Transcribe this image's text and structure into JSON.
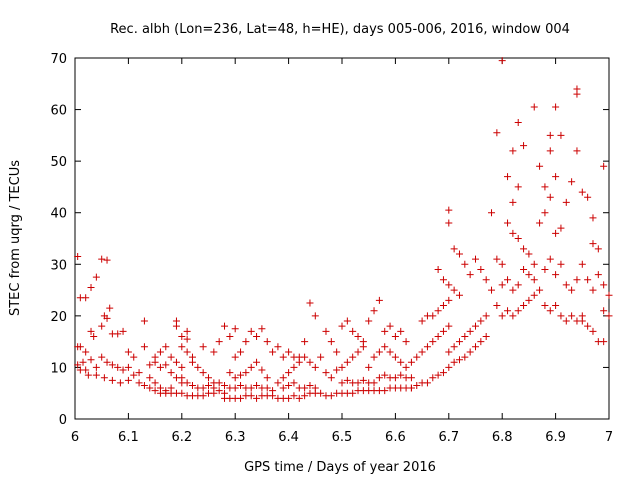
{
  "chart_data": {
    "type": "scatter",
    "title": "Rec. albh (Lon=236, Lat=48, h=HE), days 005-006, 2016, window 004",
    "xlabel": "GPS time / Days of year 2016",
    "ylabel": "STEC from uqrg / TECUs",
    "xlim": [
      6,
      7
    ],
    "ylim": [
      0,
      70
    ],
    "x_ticks": [
      6,
      6.1,
      6.2,
      6.3,
      6.4,
      6.5,
      6.6,
      6.7,
      6.8,
      6.9,
      7
    ],
    "x_tick_labels": [
      "6",
      "6.1",
      "6.2",
      "6.3",
      "6.4",
      "6.5",
      "6.6",
      "6.7",
      "6.8",
      "6.9",
      "7"
    ],
    "y_ticks": [
      0,
      10,
      20,
      30,
      40,
      50,
      60,
      70
    ],
    "y_tick_labels": [
      "0",
      "10",
      "20",
      "30",
      "40",
      "50",
      "60",
      "70"
    ],
    "grid": false,
    "legend": "none",
    "marker": "plus",
    "color": "#cc0000",
    "points": [
      [
        6.005,
        31.5
      ],
      [
        6.01,
        23.5
      ],
      [
        6.02,
        23.5
      ],
      [
        6.03,
        25.5
      ],
      [
        6.04,
        27.5
      ],
      [
        6.05,
        31
      ],
      [
        6.06,
        30.8
      ],
      [
        6.065,
        21.5
      ],
      [
        6.005,
        14
      ],
      [
        6.01,
        14
      ],
      [
        6.02,
        13
      ],
      [
        6.03,
        17
      ],
      [
        6.035,
        16
      ],
      [
        6.05,
        18
      ],
      [
        6.055,
        20
      ],
      [
        6.06,
        19.5
      ],
      [
        6.07,
        16.5
      ],
      [
        6.08,
        16.5
      ],
      [
        6.09,
        17
      ],
      [
        6.005,
        10.5
      ],
      [
        6.015,
        11
      ],
      [
        6.02,
        9.5
      ],
      [
        6.03,
        11.5
      ],
      [
        6.04,
        10
      ],
      [
        6.05,
        12
      ],
      [
        6.06,
        11
      ],
      [
        6.07,
        10.5
      ],
      [
        6.08,
        10
      ],
      [
        6.09,
        9.5
      ],
      [
        6.01,
        9.5
      ],
      [
        6.025,
        8.5
      ],
      [
        6.04,
        8.5
      ],
      [
        6.055,
        8
      ],
      [
        6.07,
        7.5
      ],
      [
        6.085,
        7
      ],
      [
        6.1,
        7.5
      ],
      [
        6.1,
        13
      ],
      [
        6.1,
        10
      ],
      [
        6.11,
        12
      ],
      [
        6.12,
        9
      ],
      [
        6.13,
        19
      ],
      [
        6.14,
        8
      ],
      [
        6.15,
        7
      ],
      [
        6.16,
        6
      ],
      [
        6.17,
        5.5
      ],
      [
        6.18,
        5
      ],
      [
        6.11,
        8.5
      ],
      [
        6.12,
        7
      ],
      [
        6.13,
        6.5
      ],
      [
        6.14,
        6
      ],
      [
        6.15,
        5.5
      ],
      [
        6.16,
        5
      ],
      [
        6.17,
        5
      ],
      [
        6.13,
        14
      ],
      [
        6.14,
        10.5
      ],
      [
        6.15,
        11
      ],
      [
        6.16,
        10
      ],
      [
        6.17,
        10.5
      ],
      [
        6.18,
        9
      ],
      [
        6.19,
        8
      ],
      [
        6.2,
        7
      ],
      [
        6.15,
        12
      ],
      [
        6.16,
        13
      ],
      [
        6.17,
        14
      ],
      [
        6.18,
        12
      ],
      [
        6.19,
        11
      ],
      [
        6.2,
        10
      ],
      [
        6.19,
        19
      ],
      [
        6.19,
        18
      ],
      [
        6.2,
        16
      ],
      [
        6.21,
        17
      ],
      [
        6.21,
        15.5
      ],
      [
        6.2,
        14
      ],
      [
        6.22,
        12
      ],
      [
        6.21,
        13
      ],
      [
        6.18,
        6
      ],
      [
        6.19,
        5
      ],
      [
        6.2,
        5
      ],
      [
        6.21,
        4.5
      ],
      [
        6.22,
        4.5
      ],
      [
        6.23,
        4.5
      ],
      [
        6.24,
        4.5
      ],
      [
        6.25,
        5
      ],
      [
        6.26,
        5
      ],
      [
        6.2,
        8
      ],
      [
        6.21,
        7
      ],
      [
        6.22,
        6.5
      ],
      [
        6.23,
        6
      ],
      [
        6.24,
        6
      ],
      [
        6.25,
        6.5
      ],
      [
        6.26,
        6
      ],
      [
        6.27,
        5.5
      ],
      [
        6.28,
        5
      ],
      [
        6.22,
        11
      ],
      [
        6.23,
        10
      ],
      [
        6.24,
        9
      ],
      [
        6.25,
        8
      ],
      [
        6.26,
        7
      ],
      [
        6.27,
        7
      ],
      [
        6.28,
        6.5
      ],
      [
        6.29,
        6
      ],
      [
        6.24,
        14
      ],
      [
        6.26,
        13
      ],
      [
        6.27,
        15
      ],
      [
        6.28,
        18
      ],
      [
        6.29,
        16
      ],
      [
        6.3,
        17.5
      ],
      [
        6.28,
        4
      ],
      [
        6.29,
        4
      ],
      [
        6.3,
        4
      ],
      [
        6.31,
        4
      ],
      [
        6.32,
        4.5
      ],
      [
        6.33,
        4.5
      ],
      [
        6.34,
        4
      ],
      [
        6.35,
        4.5
      ],
      [
        6.36,
        4.5
      ],
      [
        6.29,
        9
      ],
      [
        6.3,
        8
      ],
      [
        6.31,
        8.5
      ],
      [
        6.32,
        9
      ],
      [
        6.33,
        10
      ],
      [
        6.34,
        11
      ],
      [
        6.35,
        9.5
      ],
      [
        6.36,
        8
      ],
      [
        6.3,
        12
      ],
      [
        6.31,
        13
      ],
      [
        6.32,
        15
      ],
      [
        6.33,
        17
      ],
      [
        6.34,
        16
      ],
      [
        6.35,
        17.5
      ],
      [
        6.36,
        15
      ],
      [
        6.37,
        13
      ],
      [
        6.3,
        6
      ],
      [
        6.31,
        6.5
      ],
      [
        6.32,
        6
      ],
      [
        6.33,
        6
      ],
      [
        6.34,
        6.5
      ],
      [
        6.35,
        6
      ],
      [
        6.36,
        6
      ],
      [
        6.37,
        5.5
      ],
      [
        6.37,
        4.5
      ],
      [
        6.38,
        4
      ],
      [
        6.39,
        4
      ],
      [
        6.4,
        4
      ],
      [
        6.41,
        4.5
      ],
      [
        6.42,
        4
      ],
      [
        6.43,
        4.5
      ],
      [
        6.44,
        5
      ],
      [
        6.45,
        5
      ],
      [
        6.38,
        7
      ],
      [
        6.39,
        8
      ],
      [
        6.4,
        9
      ],
      [
        6.41,
        10
      ],
      [
        6.42,
        11
      ],
      [
        6.43,
        12
      ],
      [
        6.44,
        11
      ],
      [
        6.45,
        10
      ],
      [
        6.38,
        14
      ],
      [
        6.39,
        12
      ],
      [
        6.4,
        13
      ],
      [
        6.41,
        12
      ],
      [
        6.42,
        12
      ],
      [
        6.43,
        15
      ],
      [
        6.44,
        22.5
      ],
      [
        6.45,
        20
      ],
      [
        6.46,
        12
      ],
      [
        6.39,
        6
      ],
      [
        6.4,
        6.5
      ],
      [
        6.41,
        7
      ],
      [
        6.42,
        6
      ],
      [
        6.43,
        6
      ],
      [
        6.44,
        6.5
      ],
      [
        6.45,
        6
      ],
      [
        6.46,
        5
      ],
      [
        6.47,
        4.5
      ],
      [
        6.48,
        4.5
      ],
      [
        6.49,
        5
      ],
      [
        6.5,
        5
      ],
      [
        6.51,
        5
      ],
      [
        6.52,
        5
      ],
      [
        6.53,
        5.5
      ],
      [
        6.54,
        5.5
      ],
      [
        6.47,
        9
      ],
      [
        6.48,
        8
      ],
      [
        6.49,
        9.5
      ],
      [
        6.5,
        10
      ],
      [
        6.51,
        11
      ],
      [
        6.52,
        12
      ],
      [
        6.53,
        13
      ],
      [
        6.54,
        14
      ],
      [
        6.47,
        17
      ],
      [
        6.48,
        15
      ],
      [
        6.49,
        13
      ],
      [
        6.5,
        18
      ],
      [
        6.51,
        19
      ],
      [
        6.52,
        17
      ],
      [
        6.53,
        16
      ],
      [
        6.54,
        15
      ],
      [
        6.5,
        7
      ],
      [
        6.51,
        7.5
      ],
      [
        6.52,
        7
      ],
      [
        6.53,
        7
      ],
      [
        6.54,
        7.5
      ],
      [
        6.55,
        7
      ],
      [
        6.56,
        7
      ],
      [
        6.55,
        5.5
      ],
      [
        6.56,
        5.5
      ],
      [
        6.57,
        5.5
      ],
      [
        6.58,
        5.5
      ],
      [
        6.59,
        6
      ],
      [
        6.6,
        6
      ],
      [
        6.61,
        6
      ],
      [
        6.62,
        6
      ],
      [
        6.63,
        6
      ],
      [
        6.55,
        10
      ],
      [
        6.56,
        12
      ],
      [
        6.57,
        13
      ],
      [
        6.58,
        14
      ],
      [
        6.59,
        13
      ],
      [
        6.6,
        12
      ],
      [
        6.61,
        11
      ],
      [
        6.62,
        10
      ],
      [
        6.55,
        19
      ],
      [
        6.56,
        21
      ],
      [
        6.57,
        23
      ],
      [
        6.58,
        17
      ],
      [
        6.59,
        18
      ],
      [
        6.6,
        16
      ],
      [
        6.61,
        17
      ],
      [
        6.62,
        15
      ],
      [
        6.57,
        8
      ],
      [
        6.58,
        8.5
      ],
      [
        6.59,
        8
      ],
      [
        6.6,
        8
      ],
      [
        6.61,
        8.5
      ],
      [
        6.62,
        8
      ],
      [
        6.63,
        8
      ],
      [
        6.63,
        6
      ],
      [
        6.64,
        6.5
      ],
      [
        6.65,
        7
      ],
      [
        6.66,
        7
      ],
      [
        6.67,
        8
      ],
      [
        6.68,
        8.5
      ],
      [
        6.69,
        9
      ],
      [
        6.7,
        10
      ],
      [
        6.63,
        11
      ],
      [
        6.64,
        12
      ],
      [
        6.65,
        13
      ],
      [
        6.66,
        14
      ],
      [
        6.67,
        15
      ],
      [
        6.68,
        16
      ],
      [
        6.69,
        17
      ],
      [
        6.7,
        18
      ],
      [
        6.65,
        19
      ],
      [
        6.66,
        20
      ],
      [
        6.67,
        20
      ],
      [
        6.68,
        21
      ],
      [
        6.69,
        22
      ],
      [
        6.7,
        23
      ],
      [
        6.68,
        29
      ],
      [
        6.69,
        27
      ],
      [
        6.7,
        26
      ],
      [
        6.71,
        25
      ],
      [
        6.72,
        24
      ],
      [
        6.7,
        40.5
      ],
      [
        6.7,
        38
      ],
      [
        6.71,
        33
      ],
      [
        6.72,
        32
      ],
      [
        6.7,
        13
      ],
      [
        6.71,
        14
      ],
      [
        6.72,
        15
      ],
      [
        6.73,
        16
      ],
      [
        6.74,
        17
      ],
      [
        6.75,
        18
      ],
      [
        6.76,
        19
      ],
      [
        6.77,
        20
      ],
      [
        6.71,
        11
      ],
      [
        6.72,
        11.5
      ],
      [
        6.73,
        12
      ],
      [
        6.74,
        13
      ],
      [
        6.75,
        14
      ],
      [
        6.76,
        15
      ],
      [
        6.77,
        16
      ],
      [
        6.73,
        30
      ],
      [
        6.74,
        28
      ],
      [
        6.75,
        31
      ],
      [
        6.76,
        29
      ],
      [
        6.77,
        27
      ],
      [
        6.78,
        40
      ],
      [
        6.78,
        25
      ],
      [
        6.79,
        22
      ],
      [
        6.79,
        55.5
      ],
      [
        6.8,
        69.5
      ],
      [
        6.81,
        47
      ],
      [
        6.82,
        52
      ],
      [
        6.83,
        57.5
      ],
      [
        6.84,
        53
      ],
      [
        6.82,
        42
      ],
      [
        6.83,
        45
      ],
      [
        6.79,
        31
      ],
      [
        6.8,
        30
      ],
      [
        6.81,
        38
      ],
      [
        6.82,
        36
      ],
      [
        6.83,
        35
      ],
      [
        6.84,
        33
      ],
      [
        6.85,
        32
      ],
      [
        6.86,
        30
      ],
      [
        6.8,
        20
      ],
      [
        6.81,
        21
      ],
      [
        6.82,
        20
      ],
      [
        6.83,
        21
      ],
      [
        6.84,
        22
      ],
      [
        6.85,
        23
      ],
      [
        6.86,
        24
      ],
      [
        6.87,
        25
      ],
      [
        6.8,
        26
      ],
      [
        6.81,
        27
      ],
      [
        6.82,
        25
      ],
      [
        6.83,
        26
      ],
      [
        6.84,
        29
      ],
      [
        6.85,
        28
      ],
      [
        6.86,
        27
      ],
      [
        6.86,
        60.5
      ],
      [
        6.87,
        49
      ],
      [
        6.88,
        45
      ],
      [
        6.89,
        55
      ],
      [
        6.9,
        60.5
      ],
      [
        6.89,
        52
      ],
      [
        6.9,
        47
      ],
      [
        6.91,
        55
      ],
      [
        6.87,
        38
      ],
      [
        6.88,
        40
      ],
      [
        6.89,
        43
      ],
      [
        6.9,
        36
      ],
      [
        6.91,
        37
      ],
      [
        6.92,
        42
      ],
      [
        6.93,
        46
      ],
      [
        6.94,
        52
      ],
      [
        6.88,
        22
      ],
      [
        6.89,
        21
      ],
      [
        6.9,
        22
      ],
      [
        6.91,
        20
      ],
      [
        6.92,
        19
      ],
      [
        6.93,
        20
      ],
      [
        6.94,
        19
      ],
      [
        6.95,
        20
      ],
      [
        6.88,
        29
      ],
      [
        6.89,
        31
      ],
      [
        6.9,
        28
      ],
      [
        6.91,
        30
      ],
      [
        6.92,
        26
      ],
      [
        6.93,
        25
      ],
      [
        6.94,
        27
      ],
      [
        6.94,
        64
      ],
      [
        6.94,
        63
      ],
      [
        6.95,
        44
      ],
      [
        6.96,
        43
      ],
      [
        6.97,
        39
      ],
      [
        6.97,
        34
      ],
      [
        6.98,
        33
      ],
      [
        6.99,
        49
      ],
      [
        6.95,
        30
      ],
      [
        6.96,
        27
      ],
      [
        6.97,
        25
      ],
      [
        6.98,
        28
      ],
      [
        6.99,
        26
      ],
      [
        7.0,
        24
      ],
      [
        6.95,
        19
      ],
      [
        6.96,
        18
      ],
      [
        6.97,
        17
      ],
      [
        6.98,
        15
      ],
      [
        6.99,
        15
      ],
      [
        7.0,
        20
      ],
      [
        6.99,
        21
      ]
    ]
  }
}
